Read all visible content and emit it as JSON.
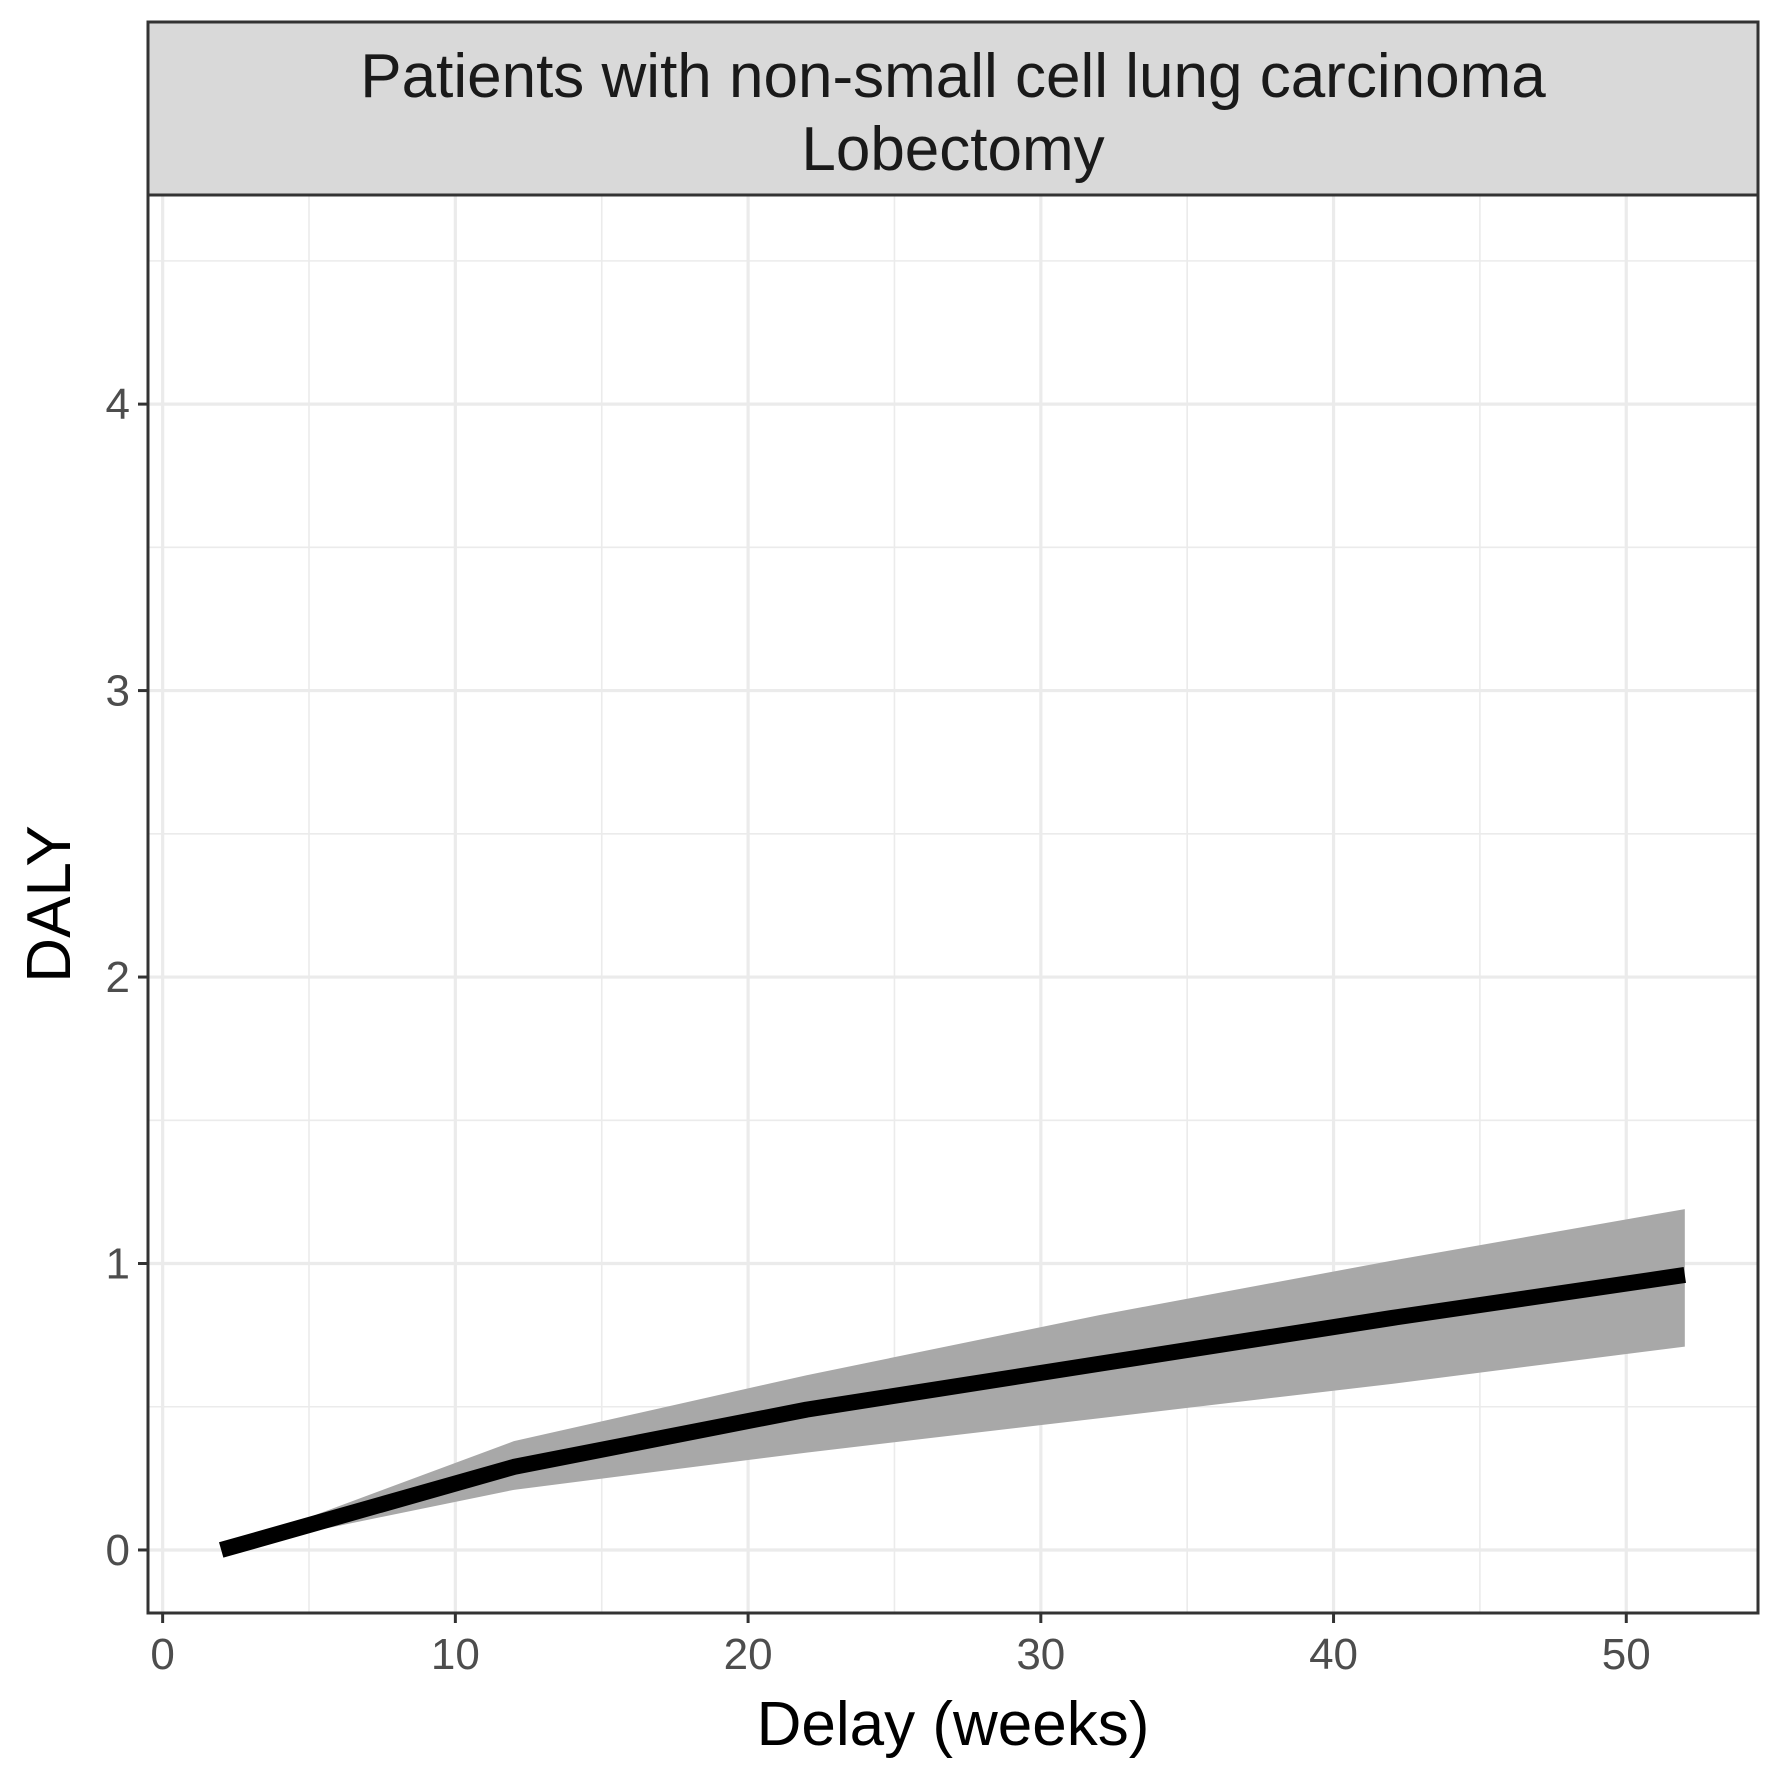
{
  "chart_data": {
    "type": "line",
    "facet_title": "Patients with non-small cell lung carcinoma",
    "facet_subtitle": "Lobectomy",
    "xlabel": "Delay (weeks)",
    "ylabel": "DALY",
    "xlim": [
      -0.5,
      54.5
    ],
    "ylim": [
      -0.22,
      4.73
    ],
    "x_ticks": [
      0,
      10,
      20,
      30,
      40,
      50
    ],
    "x_tick_labels": [
      "0",
      "10",
      "20",
      "30",
      "40",
      "50"
    ],
    "y_ticks": [
      0,
      1,
      2,
      3,
      4
    ],
    "y_tick_labels": [
      "0",
      "1",
      "2",
      "3",
      "4"
    ],
    "x_minor": [
      5,
      15,
      25,
      35,
      45
    ],
    "y_minor": [
      0.5,
      1.5,
      2.5,
      3.5,
      4.5
    ],
    "grid": true,
    "series": [
      {
        "x": [
          2,
          12,
          22,
          32,
          42,
          52
        ],
        "values": [
          0.0,
          0.29,
          0.49,
          0.65,
          0.81,
          0.96
        ],
        "lower": [
          0.0,
          0.21,
          0.34,
          0.46,
          0.58,
          0.71
        ],
        "upper": [
          0.0,
          0.38,
          0.61,
          0.82,
          1.01,
          1.19
        ]
      }
    ],
    "colors": {
      "line": "#000000",
      "ribbon": "#a8a8a8",
      "strip_bg": "#d9d9d9",
      "grid": "#ebebeb",
      "border": "#333333"
    }
  }
}
